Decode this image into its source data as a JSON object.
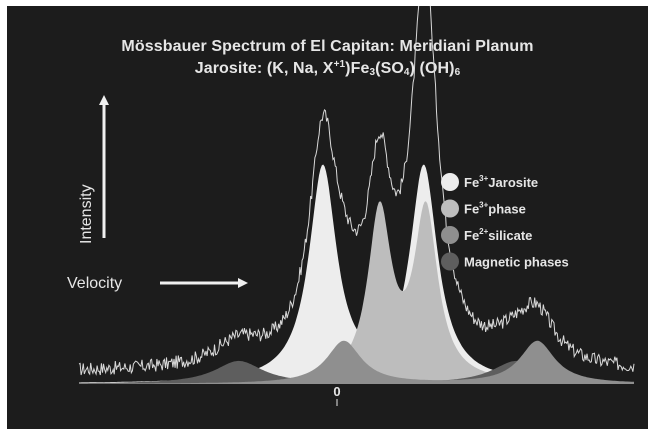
{
  "chart_data": {
    "type": "area",
    "title": "Mössbauer Spectrum of El Capitan:  Meridiani Planum",
    "subtitle": {
      "prefix": "Jarosite: (K, Na, X",
      "sup1": "+1",
      "mid1": ")Fe",
      "sub1": "3",
      "mid2": "(SO",
      "sub2": "4",
      "mid3": ")  (OH)",
      "sub3": "6"
    },
    "xlabel": "Velocity",
    "ylabel": "Intensity",
    "x_tick": "0",
    "legend_position": "right",
    "series": [
      {
        "legend": {
          "base": "Fe",
          "sup": "3+",
          "rest": "Jarosite"
        },
        "color": "#ededed",
        "components": [
          {
            "kind": "doublet",
            "center": -0.1,
            "split": 1.2,
            "width": 0.2,
            "amp": 0.75
          }
        ]
      },
      {
        "legend": {
          "base": "Fe",
          "sup": "3+",
          "rest": "phase"
        },
        "color": "#bdbdbd",
        "components": [
          {
            "kind": "doublet",
            "center": 0.25,
            "split": 0.55,
            "width": 0.17,
            "amp": 0.59
          }
        ]
      },
      {
        "legend": {
          "base": "Fe",
          "sup": "2+",
          "rest": "silicate"
        },
        "color": "#8f8f8f",
        "components": [
          {
            "kind": "doublet",
            "center": 0.7,
            "split": 2.3,
            "width": 0.25,
            "amp": 0.15
          }
        ]
      },
      {
        "legend": {
          "base": "",
          "sup": "",
          "rest": "Magnetic phases"
        },
        "color": "#5e5e5e",
        "components": [
          {
            "kind": "line",
            "x": -1.7,
            "width": 0.35,
            "amp": 0.08
          },
          {
            "kind": "line",
            "x": 1.6,
            "width": 0.35,
            "amp": 0.08
          }
        ]
      }
    ],
    "measured": {
      "color": "#d9d9d9",
      "baseline": 0.04,
      "noise": 0.012
    },
    "x_range": [
      -3.6,
      3.0
    ],
    "y_range": [
      0,
      1.0
    ]
  },
  "colors": {
    "background": "#1c1c1c",
    "text": "#e6e6e6"
  }
}
